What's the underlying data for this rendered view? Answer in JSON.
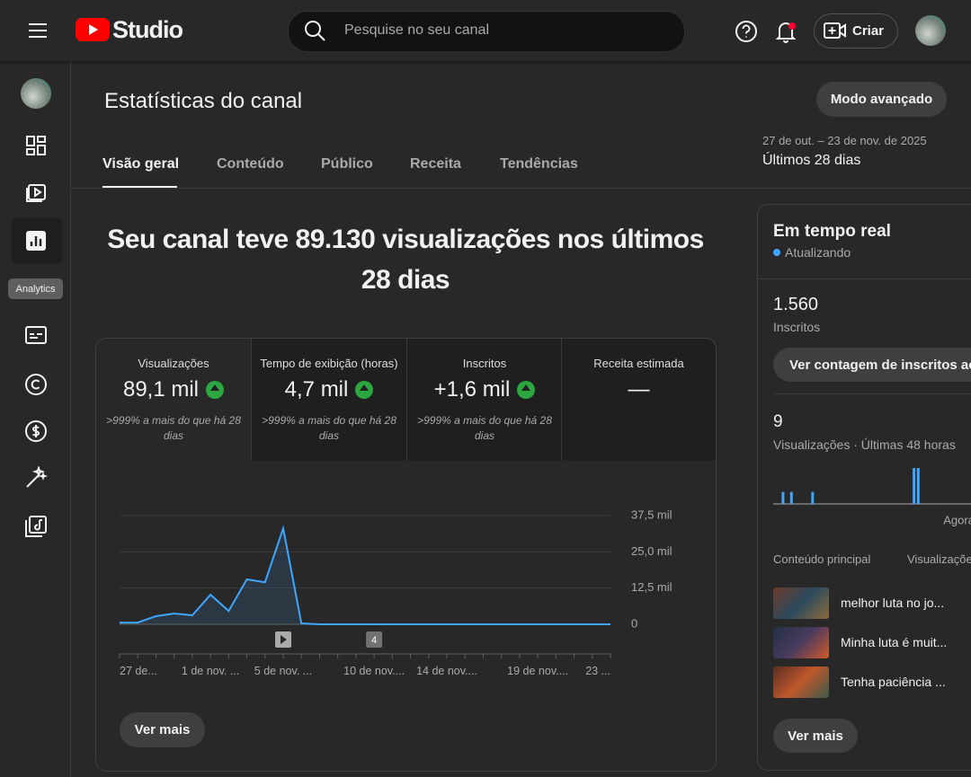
{
  "header": {
    "logo_text": "Studio",
    "search_placeholder": "Pesquise no seu canal",
    "create_button": "Criar"
  },
  "sidebar": {
    "tooltip": "Analytics"
  },
  "page": {
    "title": "Estatísticas do canal",
    "advanced_button": "Modo avançado",
    "date_range": "27 de out. – 23 de nov. de 2025",
    "period": "Últimos 28 dias",
    "tabs": [
      "Visão geral",
      "Conteúdo",
      "Público",
      "Receita",
      "Tendências"
    ]
  },
  "headline": "Seu canal teve 89.130 visualizações nos últimos 28 dias",
  "metrics": [
    {
      "label": "Visualizações",
      "value": "89,1 mil",
      "note": ">999% a mais do que há 28 dias"
    },
    {
      "label": "Tempo de exibição (horas)",
      "value": "4,7 mil",
      "note": ">999% a mais do que há 28 dias"
    },
    {
      "label": "Inscritos",
      "value": "+1,6 mil",
      "note": ">999% a mais do que há 28 dias"
    },
    {
      "label": "Receita estimada",
      "value": "—"
    }
  ],
  "see_more": "Ver mais",
  "realtime": {
    "title": "Em tempo real",
    "status": "Atualizando",
    "subscribers": "1.560",
    "subscribers_label": "Inscritos",
    "live_count_button": "Ver contagem de inscritos ao vivo",
    "views": "9",
    "views_label": "Visualizações · Últimas 48 horas",
    "top_content_header": "Conteúdo principal",
    "views_header": "Visualizações",
    "items": [
      "melhor luta no jo...",
      "Minha luta é muit...",
      "Tenha paciência ..."
    ],
    "see_more": "Ver mais"
  },
  "chart_data": [
    {
      "type": "line",
      "categories": [
        "27 de...",
        null,
        null,
        null,
        null,
        "1 de nov. ...",
        null,
        null,
        null,
        "5 de nov. ...",
        null,
        null,
        null,
        null,
        "10 de nov....",
        null,
        null,
        null,
        "14 de nov....",
        null,
        null,
        null,
        null,
        "19 de nov....",
        null,
        null,
        null,
        "23 ..."
      ],
      "values": [
        600,
        600,
        2800,
        3700,
        3100,
        10200,
        4600,
        15500,
        14500,
        33100,
        300,
        10,
        10,
        10,
        10,
        10,
        10,
        10,
        10,
        10,
        10,
        10,
        10,
        10,
        10,
        10,
        10,
        10
      ],
      "color": "#3ea6ff",
      "annotation": "4",
      "ylim": [
        0,
        37500
      ],
      "yticks": [
        0,
        {
          "value": 12500,
          "label": "12,5 mil"
        },
        {
          "value": 25000,
          "label": "25,0 mil"
        },
        {
          "value": 37500,
          "label": "37,5 mil"
        }
      ],
      "grid": true
    },
    {
      "type": "bar",
      "categories": [
        null,
        null,
        null,
        null,
        null,
        null,
        null,
        null,
        null,
        null,
        null,
        null,
        null,
        null,
        null,
        null,
        null,
        null,
        null,
        null,
        null,
        null,
        null,
        null,
        null,
        null,
        null,
        null,
        null,
        null,
        null,
        null,
        null,
        null,
        null,
        null,
        null,
        null,
        null,
        null,
        null,
        null,
        null,
        null,
        null,
        null,
        null,
        "Agora"
      ],
      "values": [
        0,
        0,
        1,
        0,
        1,
        0,
        0,
        0,
        0,
        1,
        0,
        0,
        0,
        0,
        0,
        0,
        0,
        0,
        0,
        0,
        0,
        0,
        0,
        0,
        0,
        0,
        0,
        0,
        0,
        0,
        0,
        0,
        0,
        3,
        3,
        0,
        0,
        0,
        0,
        0,
        0,
        0,
        0,
        0,
        0,
        0,
        0,
        0
      ],
      "color": "#3ea6ff",
      "ylim": [
        0,
        3
      ]
    }
  ]
}
